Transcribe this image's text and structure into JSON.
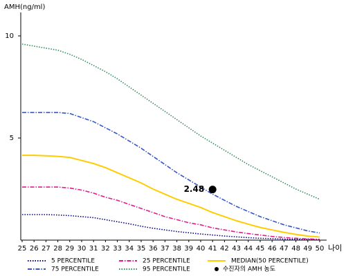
{
  "chart_data": {
    "type": "line",
    "y_label": "AMH(ng/ml)",
    "x_label": "나이",
    "x": [
      25,
      26,
      27,
      28,
      29,
      30,
      31,
      32,
      33,
      34,
      35,
      36,
      37,
      38,
      39,
      40,
      41,
      42,
      43,
      44,
      45,
      46,
      47,
      48,
      49,
      50
    ],
    "xlim": [
      25,
      50
    ],
    "xticks": [
      25,
      26,
      27,
      28,
      29,
      30,
      31,
      32,
      33,
      34,
      35,
      36,
      37,
      38,
      39,
      40,
      41,
      42,
      43,
      44,
      45,
      46,
      47,
      48,
      49,
      50
    ],
    "ylim": [
      0,
      11.15
    ],
    "yticks": [
      5,
      10
    ],
    "series": [
      {
        "name": "5 PERCENTILE",
        "color": "#000080",
        "dash": "dotted",
        "values": [
          1.25,
          1.25,
          1.25,
          1.23,
          1.2,
          1.15,
          1.1,
          1.0,
          0.9,
          0.8,
          0.68,
          0.58,
          0.5,
          0.42,
          0.36,
          0.3,
          0.25,
          0.2,
          0.16,
          0.12,
          0.09,
          0.07,
          0.05,
          0.04,
          0.03,
          0.02
        ]
      },
      {
        "name": "25 PERCENTILE",
        "color": "#e6198c",
        "dash": "dashdot",
        "values": [
          2.6,
          2.6,
          2.6,
          2.6,
          2.55,
          2.45,
          2.3,
          2.1,
          1.95,
          1.75,
          1.55,
          1.35,
          1.15,
          1.0,
          0.85,
          0.75,
          0.6,
          0.5,
          0.4,
          0.32,
          0.25,
          0.18,
          0.13,
          0.09,
          0.06,
          0.04
        ]
      },
      {
        "name": "MEDIAN(50 PERCENTILE)",
        "color": "#ffcc00",
        "dash": "solid",
        "values": [
          4.15,
          4.15,
          4.13,
          4.1,
          4.05,
          3.9,
          3.75,
          3.55,
          3.3,
          3.05,
          2.8,
          2.5,
          2.25,
          2.0,
          1.8,
          1.6,
          1.35,
          1.15,
          0.95,
          0.78,
          0.62,
          0.5,
          0.38,
          0.28,
          0.2,
          0.15
        ]
      },
      {
        "name": "75 PERCENTILE",
        "color": "#3355cc",
        "dash": "dashdot",
        "values": [
          6.25,
          6.25,
          6.25,
          6.25,
          6.2,
          6.0,
          5.8,
          5.5,
          5.2,
          4.85,
          4.5,
          4.1,
          3.7,
          3.3,
          2.95,
          2.6,
          2.25,
          1.95,
          1.65,
          1.4,
          1.15,
          0.95,
          0.75,
          0.6,
          0.45,
          0.35
        ]
      },
      {
        "name": "95 PERCENTILE",
        "color": "#2e8b57",
        "dash": "dotted",
        "values": [
          9.6,
          9.5,
          9.4,
          9.3,
          9.1,
          8.85,
          8.55,
          8.25,
          7.9,
          7.5,
          7.1,
          6.7,
          6.3,
          5.9,
          5.5,
          5.1,
          4.75,
          4.4,
          4.05,
          3.7,
          3.4,
          3.1,
          2.8,
          2.5,
          2.25,
          2.0
        ]
      }
    ],
    "point": {
      "name": "수진자의 AMH 농도",
      "x": 41,
      "y": 2.48,
      "color": "#000000"
    }
  }
}
